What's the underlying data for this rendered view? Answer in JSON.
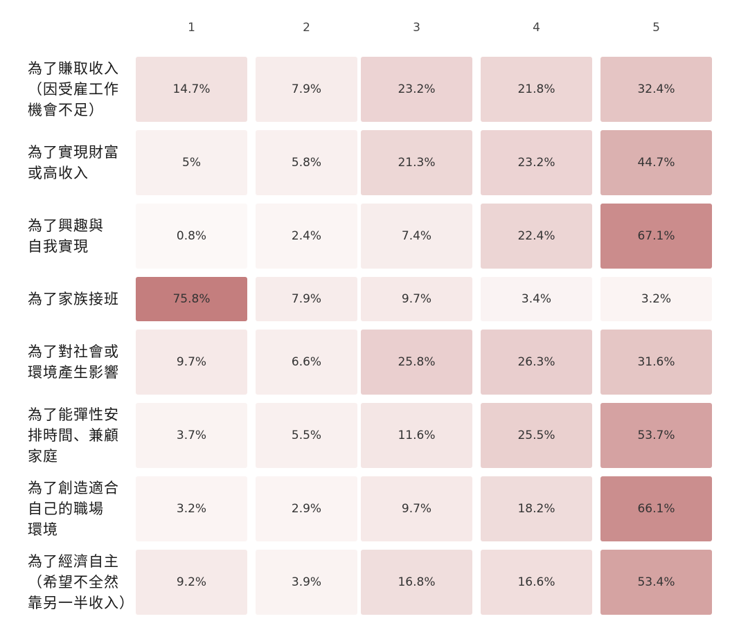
{
  "chart_data": {
    "type": "heatmap",
    "title": "",
    "columns": [
      "1",
      "2",
      "3",
      "4",
      "5"
    ],
    "rows": [
      {
        "label": "為了賺取收入（因受雇工作機會不足）",
        "lines": [
          "為了賺取收入",
          "（因受雇工作",
          "機會不足）"
        ],
        "values": [
          14.7,
          7.9,
          23.2,
          21.8,
          32.4
        ],
        "labels": [
          "14.7%",
          "7.9%",
          "23.2%",
          "21.8%",
          "32.4%"
        ]
      },
      {
        "label": "為了實現財富或高收入",
        "lines": [
          "為了實現財富",
          "或高收入"
        ],
        "values": [
          5,
          5.8,
          21.3,
          23.2,
          44.7
        ],
        "labels": [
          "5%",
          "5.8%",
          "21.3%",
          "23.2%",
          "44.7%"
        ]
      },
      {
        "label": "為了興趣與自我實現",
        "lines": [
          "為了興趣與",
          "自我實現"
        ],
        "values": [
          0.8,
          2.4,
          7.4,
          22.4,
          67.1
        ],
        "labels": [
          "0.8%",
          "2.4%",
          "7.4%",
          "22.4%",
          "67.1%"
        ]
      },
      {
        "label": "為了家族接班",
        "lines": [
          "為了家族接班"
        ],
        "values": [
          75.8,
          7.9,
          9.7,
          3.4,
          3.2
        ],
        "labels": [
          "75.8%",
          "7.9%",
          "9.7%",
          "3.4%",
          "3.2%"
        ]
      },
      {
        "label": "為了對社會或環境產生影響",
        "lines": [
          "為了對社會或",
          "環境產生影響"
        ],
        "values": [
          9.7,
          6.6,
          25.8,
          26.3,
          31.6
        ],
        "labels": [
          "9.7%",
          "6.6%",
          "25.8%",
          "26.3%",
          "31.6%"
        ]
      },
      {
        "label": "為了能彈性安排時間、兼顧家庭",
        "lines": [
          "為了能彈性安",
          "排時間、兼顧",
          "家庭"
        ],
        "values": [
          3.7,
          5.5,
          11.6,
          25.5,
          53.7
        ],
        "labels": [
          "3.7%",
          "5.5%",
          "11.6%",
          "25.5%",
          "53.7%"
        ]
      },
      {
        "label": "為了創造適合自己的職場環境",
        "lines": [
          "為了創造適合",
          "自己的職場",
          "環境"
        ],
        "values": [
          3.2,
          2.9,
          9.7,
          18.2,
          66.1
        ],
        "labels": [
          "3.2%",
          "2.9%",
          "9.7%",
          "18.2%",
          "66.1%"
        ]
      },
      {
        "label": "為了經濟自主（希望不全然靠另一半收入）",
        "lines": [
          "為了經濟自主",
          "（希望不全然",
          "靠另一半收入）"
        ],
        "values": [
          9.2,
          3.9,
          16.8,
          16.6,
          53.4
        ],
        "labels": [
          "9.2%",
          "3.9%",
          "16.8%",
          "16.6%",
          "53.4%"
        ]
      }
    ],
    "color_scale": {
      "low": "#fdf9f8",
      "high": "#c47e7e",
      "min": 0,
      "max": 76
    },
    "grid": false,
    "legend": "none"
  }
}
